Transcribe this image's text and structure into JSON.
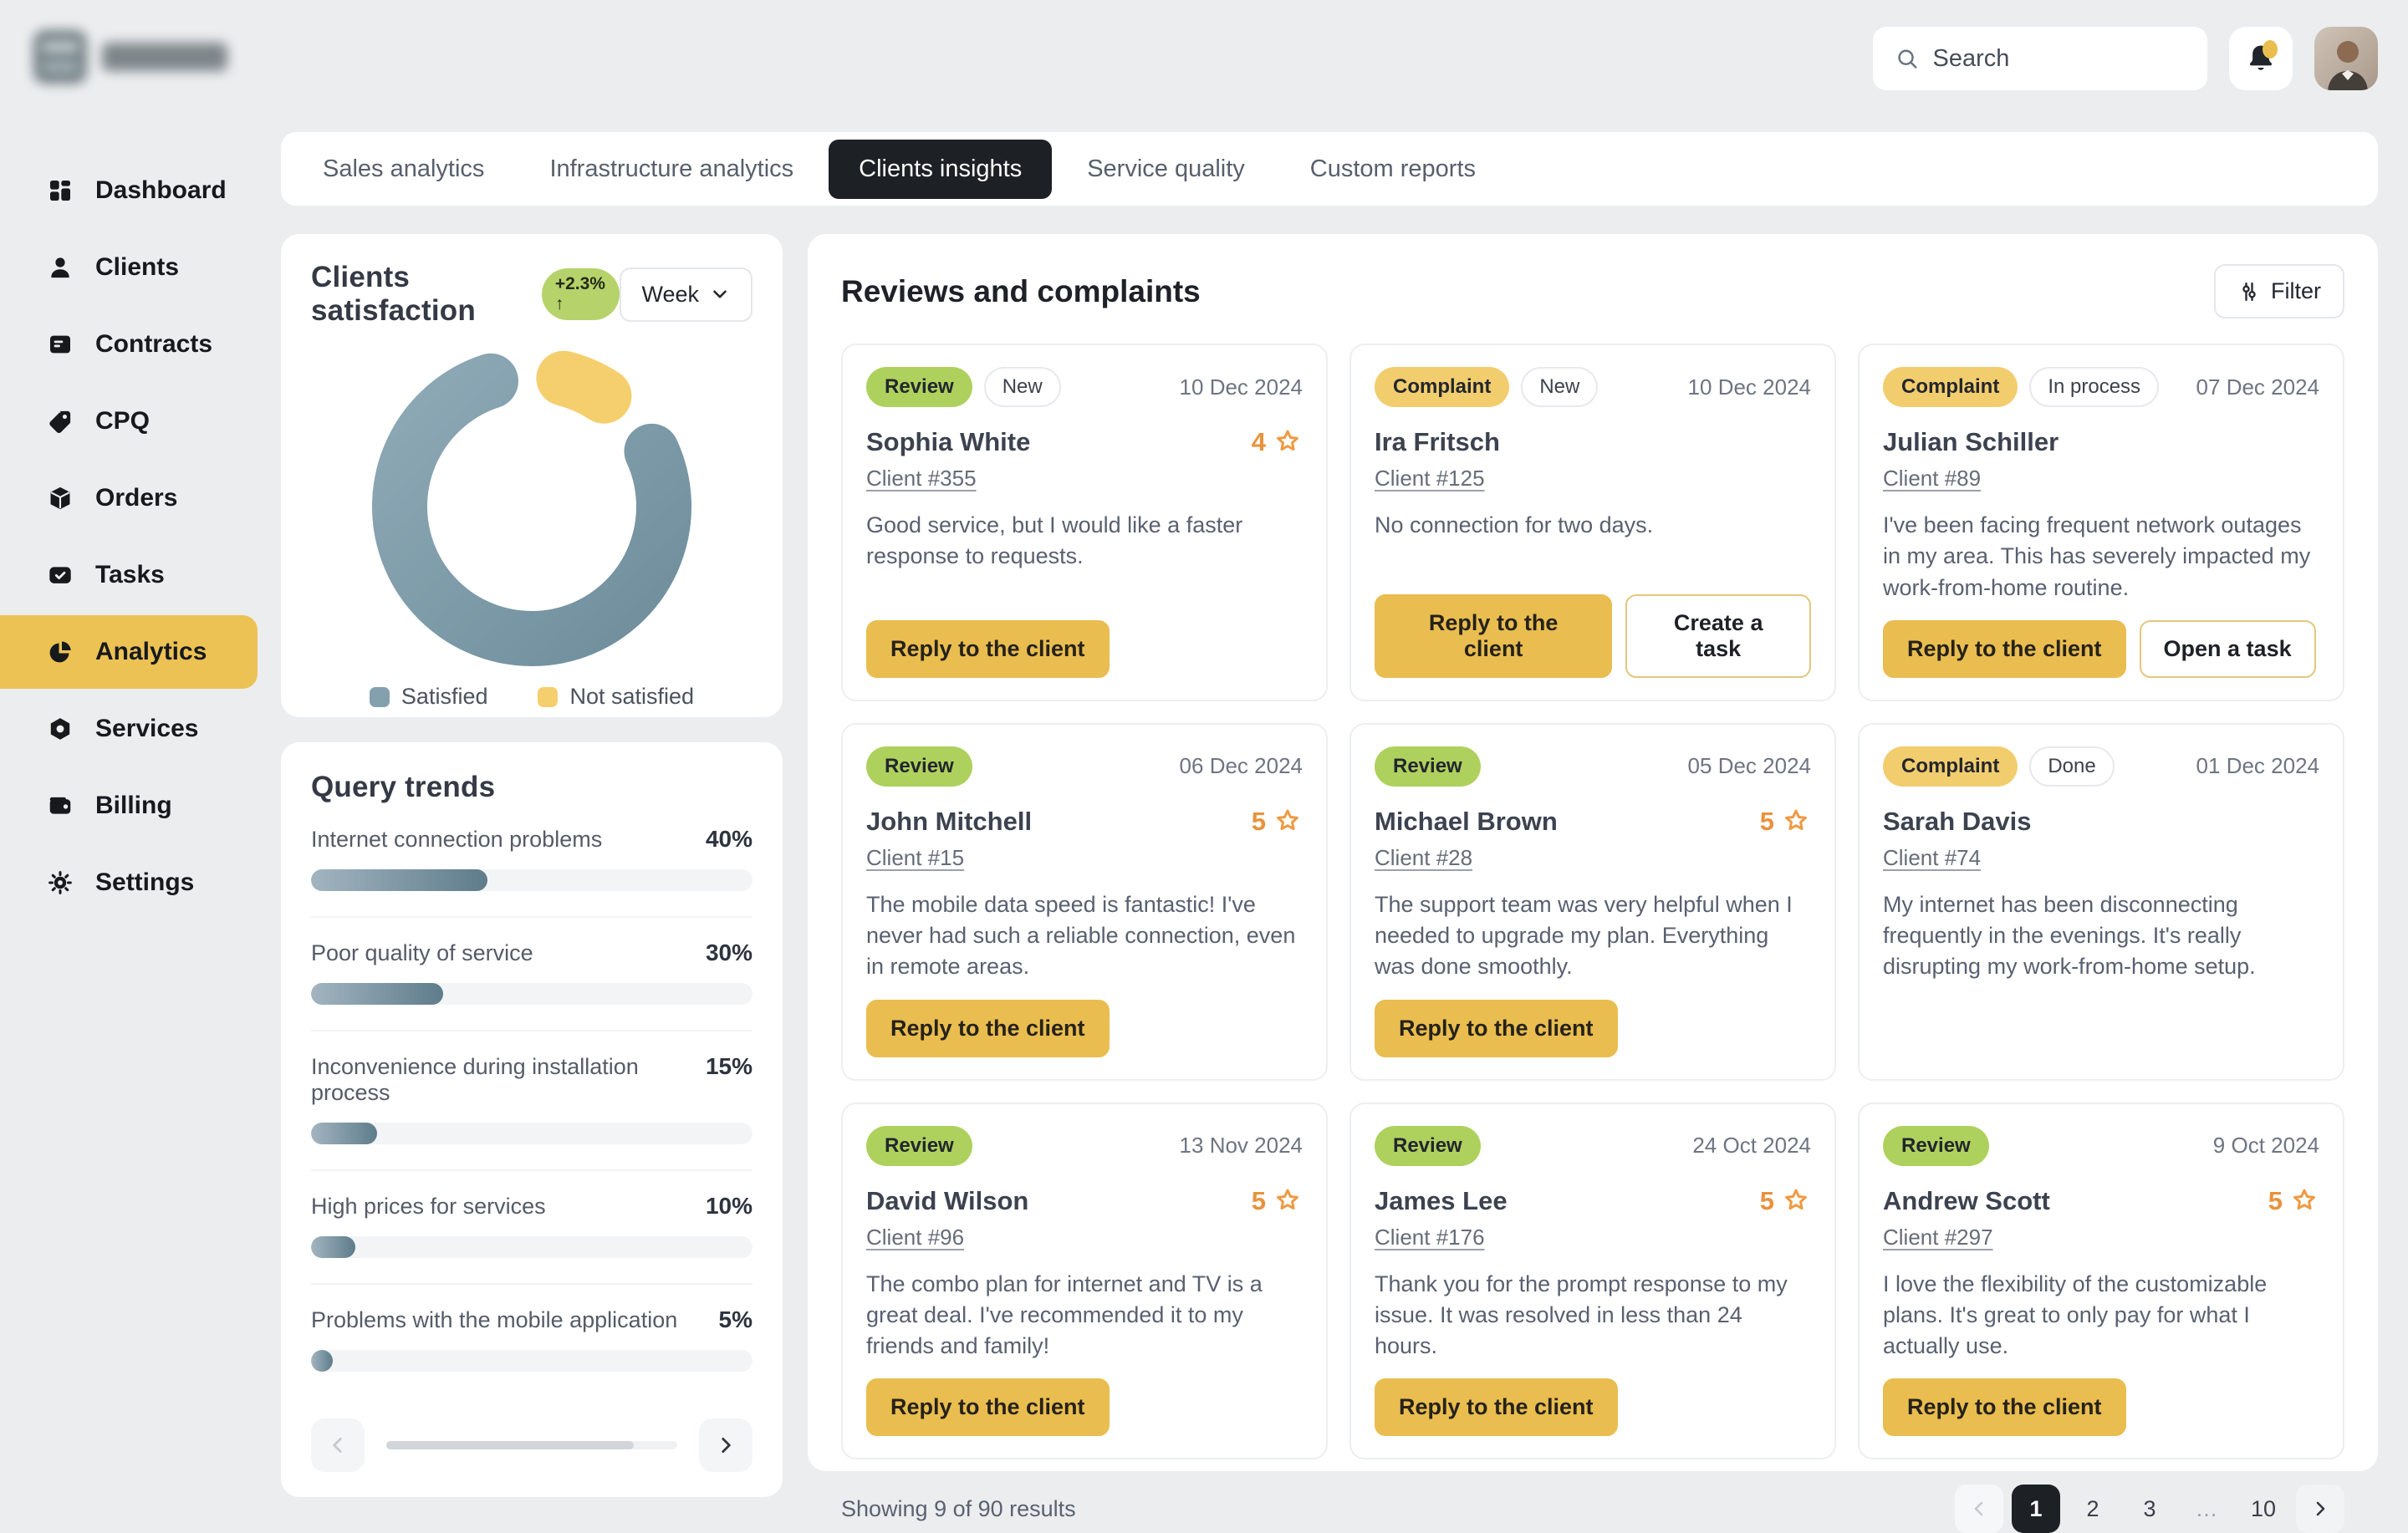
{
  "topbar": {
    "search_placeholder": "Search"
  },
  "sidebar": {
    "items": [
      {
        "label": "Dashboard",
        "icon": "dashboard-icon",
        "active": false
      },
      {
        "label": "Clients",
        "icon": "clients-icon",
        "active": false
      },
      {
        "label": "Contracts",
        "icon": "contracts-icon",
        "active": false
      },
      {
        "label": "CPQ",
        "icon": "cpq-icon",
        "active": false
      },
      {
        "label": "Orders",
        "icon": "orders-icon",
        "active": false
      },
      {
        "label": "Tasks",
        "icon": "tasks-icon",
        "active": false
      },
      {
        "label": "Analytics",
        "icon": "analytics-icon",
        "active": true
      },
      {
        "label": "Services",
        "icon": "services-icon",
        "active": false
      },
      {
        "label": "Billing",
        "icon": "billing-icon",
        "active": false
      },
      {
        "label": "Settings",
        "icon": "settings-icon",
        "active": false
      }
    ]
  },
  "tabs": [
    {
      "label": "Sales analytics",
      "active": false
    },
    {
      "label": "Infrastructure analytics",
      "active": false
    },
    {
      "label": "Clients insights",
      "active": true
    },
    {
      "label": "Service quality",
      "active": false
    },
    {
      "label": "Custom reports",
      "active": false
    }
  ],
  "satisfaction": {
    "title": "Clients satisfaction",
    "change_badge": "+2.3% ↑",
    "period": "Week",
    "colors": {
      "satisfied": "#84A0AE",
      "not_satisfied": "#F5CF6E"
    }
  },
  "chart_data": [
    {
      "type": "pie",
      "title": "Clients satisfaction",
      "labels": [
        "Satisfied",
        "Not satisfied"
      ],
      "values": [
        88,
        12
      ],
      "unit": "%",
      "style": "donut",
      "colors": [
        "#84A0AE",
        "#F5CF6E"
      ],
      "legend_position": "bottom",
      "change_badge": "+2.3% ↑",
      "period": "Week"
    },
    {
      "type": "bar",
      "title": "Query trends",
      "orientation": "horizontal",
      "categories": [
        "Internet connection problems",
        "Poor quality of service",
        "Inconvenience during installation process",
        "High prices for services",
        "Problems with the mobile application"
      ],
      "values": [
        40,
        30,
        15,
        10,
        5
      ],
      "unit": "%",
      "xlim": [
        0,
        100
      ]
    }
  ],
  "trends": {
    "title": "Query trends"
  },
  "reviews": {
    "title": "Reviews and complaints",
    "filter_label": "Filter",
    "cards": [
      {
        "type": "Review",
        "status": "New",
        "date": "10 Dec 2024",
        "name": "Sophia White",
        "client": "Client #355",
        "rating": 4,
        "text": "Good service, but I would like a faster response to requests.",
        "buttons": [
          {
            "label": "Reply to the client",
            "style": "primary"
          }
        ]
      },
      {
        "type": "Complaint",
        "status": "New",
        "date": "10 Dec 2024",
        "name": "Ira Fritsch",
        "client": "Client #125",
        "rating": null,
        "text": "No connection for two days.",
        "buttons": [
          {
            "label": "Reply to the client",
            "style": "primary"
          },
          {
            "label": "Create a task",
            "style": "secondary"
          }
        ]
      },
      {
        "type": "Complaint",
        "status": "In process",
        "date": "07 Dec 2024",
        "name": "Julian Schiller",
        "client": "Client #89",
        "rating": null,
        "text": "I've been facing frequent network outages in my area. This has severely impacted my work-from-home routine.",
        "buttons": [
          {
            "label": "Reply to the client",
            "style": "primary"
          },
          {
            "label": "Open a task",
            "style": "secondary"
          }
        ]
      },
      {
        "type": "Review",
        "status": null,
        "date": "06 Dec 2024",
        "name": "John Mitchell",
        "client": "Client #15",
        "rating": 5,
        "text": "The mobile data speed is fantastic! I've never had such a reliable connection, even in remote areas.",
        "buttons": [
          {
            "label": "Reply to the client",
            "style": "primary"
          }
        ]
      },
      {
        "type": "Review",
        "status": null,
        "date": "05 Dec 2024",
        "name": "Michael Brown",
        "client": "Client #28",
        "rating": 5,
        "text": "The support team was very helpful when I needed to upgrade my plan. Everything was done smoothly.",
        "buttons": [
          {
            "label": "Reply to the client",
            "style": "primary"
          }
        ]
      },
      {
        "type": "Complaint",
        "status": "Done",
        "date": "01 Dec 2024",
        "name": "Sarah Davis",
        "client": "Client #74",
        "rating": null,
        "text": "My internet has been disconnecting frequently in the evenings. It's really disrupting my work-from-home setup.",
        "buttons": []
      },
      {
        "type": "Review",
        "status": null,
        "date": "13 Nov 2024",
        "name": "David Wilson",
        "client": "Client #96",
        "rating": 5,
        "text": "The combo plan for internet and TV is a great deal. I've recommended it to my friends and family!",
        "buttons": [
          {
            "label": "Reply to the client",
            "style": "primary"
          }
        ]
      },
      {
        "type": "Review",
        "status": null,
        "date": "24 Oct 2024",
        "name": "James Lee",
        "client": "Client #176",
        "rating": 5,
        "text": "Thank you for the prompt response to my issue. It was resolved in less than 24 hours.",
        "buttons": [
          {
            "label": "Reply to the client",
            "style": "primary"
          }
        ]
      },
      {
        "type": "Review",
        "status": null,
        "date": "9 Oct 2024",
        "name": "Andrew Scott",
        "client": "Client #297",
        "rating": 5,
        "text": "I love the flexibility of the customizable plans. It's great to only pay for what I actually use.",
        "buttons": [
          {
            "label": "Reply to the client",
            "style": "primary"
          }
        ]
      }
    ],
    "pagination": {
      "summary": "Showing 9 of 90 results",
      "pages": [
        "1",
        "2",
        "3",
        "…",
        "10"
      ],
      "active_page": "1"
    }
  }
}
